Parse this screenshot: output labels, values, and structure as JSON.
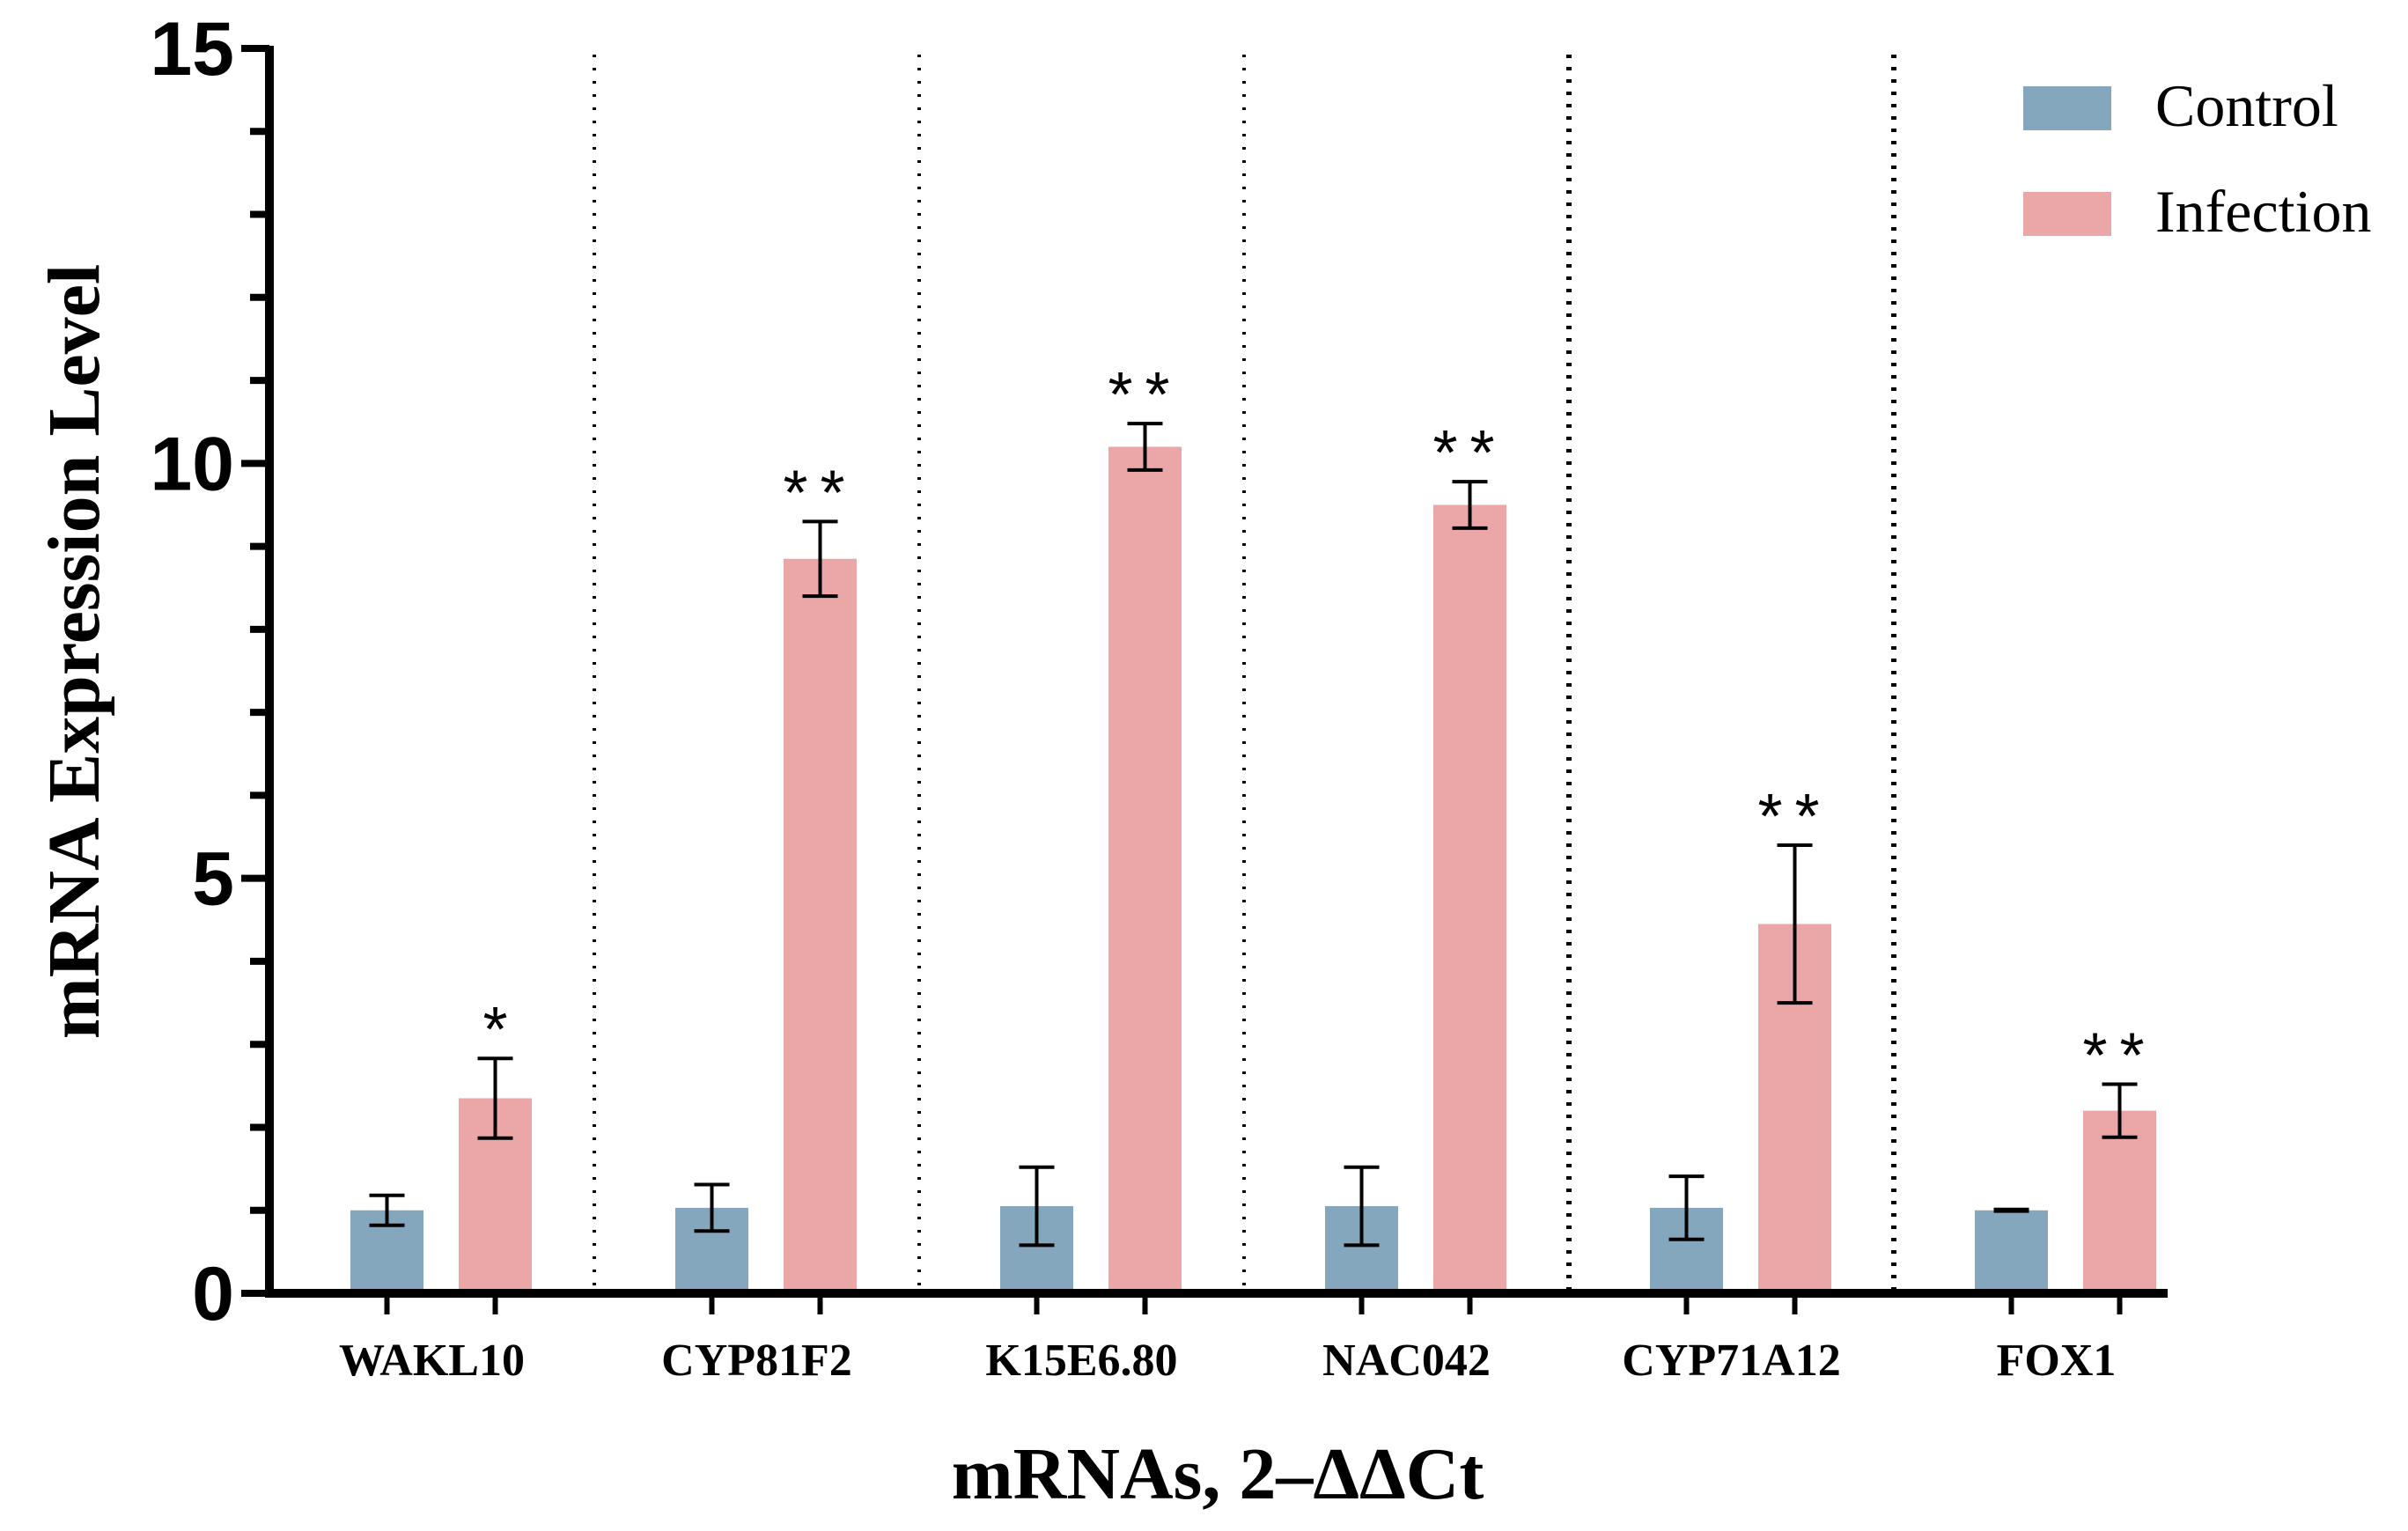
{
  "chart_data": {
    "type": "bar",
    "title": "",
    "xlabel": "mRNAs, 2–ΔΔCt",
    "ylabel": "mRNA Expression Level",
    "ylim": [
      0,
      15
    ],
    "yticks": [
      "0",
      "5",
      "10",
      "15"
    ],
    "categories": [
      "WAKL10",
      "CYP81F2",
      "K15E6.80",
      "NAC042",
      "CYP71A12",
      "FOX1"
    ],
    "series": [
      {
        "name": "Control",
        "color": "#84A7BD",
        "values": [
          1.0,
          1.03,
          1.05,
          1.05,
          1.03,
          1.0
        ],
        "errors": [
          0.18,
          0.28,
          0.47,
          0.47,
          0.38,
          0.01
        ],
        "significance": [
          "",
          "",
          "",
          "",
          "",
          ""
        ]
      },
      {
        "name": "Infection",
        "color": "#EBA7A8",
        "values": [
          2.35,
          8.85,
          10.2,
          9.5,
          4.45,
          2.2
        ],
        "errors": [
          0.48,
          0.45,
          0.28,
          0.28,
          0.95,
          0.32
        ],
        "significance": [
          "*",
          "**",
          "**",
          "**",
          "**",
          "**"
        ]
      }
    ],
    "legend_position": "top-right",
    "grid": false,
    "group_separators": "dotted"
  }
}
